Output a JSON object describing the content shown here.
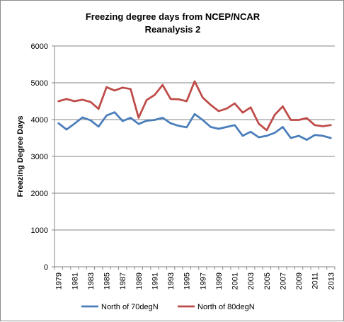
{
  "chart_data": {
    "type": "line",
    "title_line1": "Freezing degree days from NCEP/NCAR",
    "title_line2": "Reanalysis 2",
    "xlabel": "",
    "ylabel": "Freezing Degree Days",
    "ylim": [
      0,
      6000
    ],
    "yticks": [
      0,
      1000,
      2000,
      3000,
      4000,
      5000,
      6000
    ],
    "grid": true,
    "legend_position": "bottom",
    "x": [
      1979,
      1980,
      1981,
      1982,
      1983,
      1984,
      1985,
      1986,
      1987,
      1988,
      1989,
      1990,
      1991,
      1992,
      1993,
      1994,
      1995,
      1996,
      1997,
      1998,
      1999,
      2000,
      2001,
      2002,
      2003,
      2004,
      2005,
      2006,
      2007,
      2008,
      2009,
      2010,
      2011,
      2012,
      2013
    ],
    "xtick_labels": [
      "1979",
      "1981",
      "1983",
      "1985",
      "1987",
      "1989",
      "1991",
      "1993",
      "1995",
      "1997",
      "1999",
      "2001",
      "2003",
      "2005",
      "2007",
      "2009",
      "2011",
      "2013"
    ],
    "series": [
      {
        "name": "North of 70degN",
        "color": "#4a7ebb",
        "values": [
          3900,
          3730,
          3890,
          4060,
          3980,
          3810,
          4110,
          4200,
          3960,
          4050,
          3880,
          3970,
          3990,
          4050,
          3900,
          3830,
          3790,
          4150,
          3990,
          3800,
          3750,
          3800,
          3850,
          3560,
          3670,
          3520,
          3560,
          3640,
          3800,
          3500,
          3560,
          3450,
          3580,
          3560,
          3500
        ]
      },
      {
        "name": "North of 80degN",
        "color": "#be4b48",
        "values": [
          4500,
          4560,
          4500,
          4540,
          4480,
          4290,
          4880,
          4790,
          4870,
          4830,
          4050,
          4530,
          4670,
          4940,
          4560,
          4550,
          4500,
          5040,
          4600,
          4400,
          4230,
          4300,
          4440,
          4190,
          4330,
          3890,
          3710,
          4130,
          4360,
          3990,
          3990,
          4040,
          3850,
          3820,
          3850
        ]
      }
    ]
  }
}
